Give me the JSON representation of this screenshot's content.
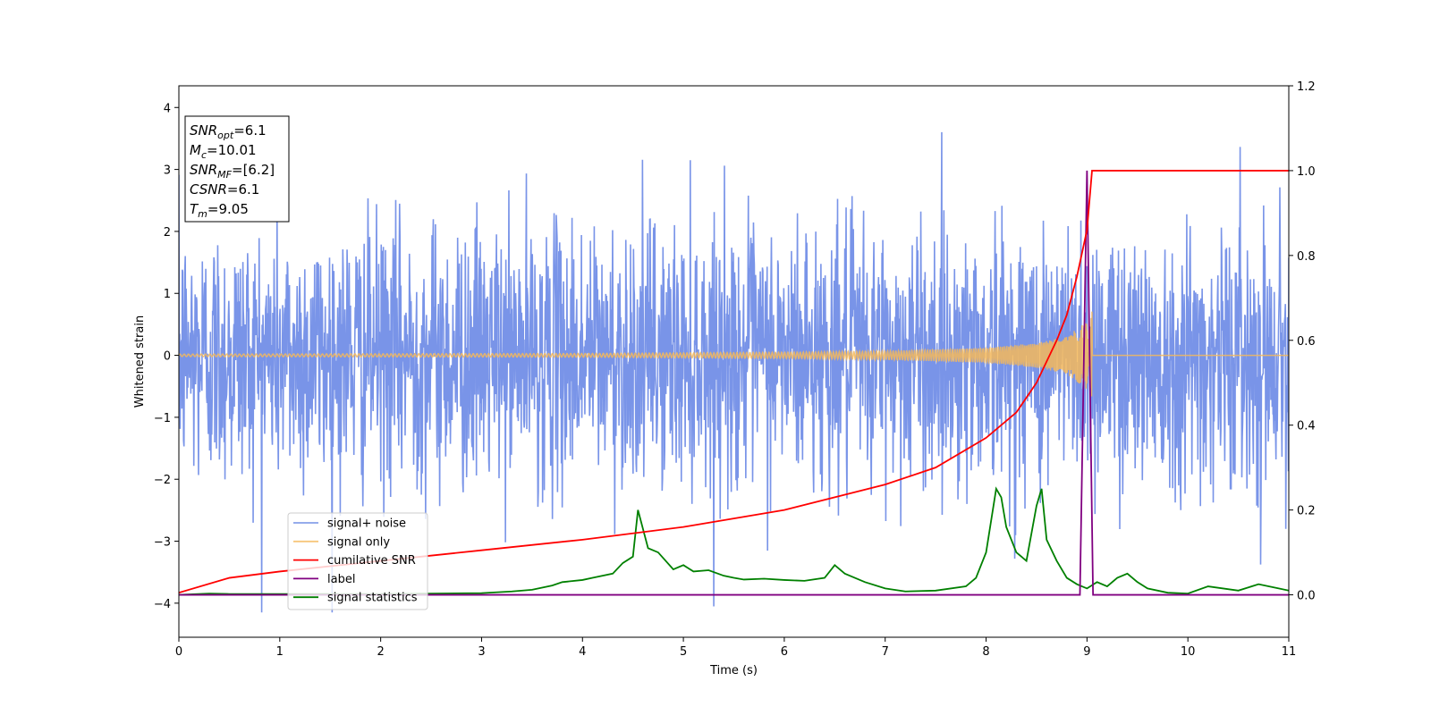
{
  "chart_data": {
    "type": "line",
    "xlabel": "Time (s)",
    "ylabel_left": "Whitened strain",
    "ylabel_right": "",
    "xlim": [
      0,
      11
    ],
    "ylim_left": [
      -4.55,
      4.35
    ],
    "ylim_right": [
      -0.1,
      1.2
    ],
    "x_ticks": [
      0,
      1,
      2,
      3,
      4,
      5,
      6,
      7,
      8,
      9,
      10,
      11
    ],
    "y_ticks_left": [
      -4,
      -3,
      -2,
      -1,
      0,
      1,
      2,
      3,
      4
    ],
    "y_ticks_right": [
      0.0,
      0.2,
      0.4,
      0.6,
      0.8,
      1.0,
      1.2
    ],
    "grid": false,
    "legend_position": "lower-left",
    "info_box": {
      "position": "top-left",
      "lines": [
        {
          "main": "SNR",
          "sub": "opt",
          "value": "=6.1"
        },
        {
          "main": "M",
          "sub": "c",
          "value": "=10.01"
        },
        {
          "main": "SNR",
          "sub": "MF",
          "value": "=[6.2]"
        },
        {
          "main": "CSNR",
          "sub": "",
          "value": "=6.1"
        },
        {
          "main": "T",
          "sub": "m",
          "value": "=9.05"
        }
      ]
    },
    "series": [
      {
        "name": "signal+ noise",
        "axis": "left",
        "color": "#6a88e5",
        "description": "whitened noise, std about 1, extremes about -4.1 to 3.8"
      },
      {
        "name": "signal only",
        "axis": "left",
        "color": "#f5b85a",
        "envelope_t": [
          0,
          4,
          6,
          7,
          8,
          8.5,
          8.8,
          9.0,
          9.05
        ],
        "envelope_amp": [
          0.02,
          0.03,
          0.05,
          0.07,
          0.12,
          0.2,
          0.3,
          0.55,
          0.72
        ],
        "merger_time": 9.05
      },
      {
        "name": "cumilative SNR",
        "axis": "right",
        "color": "#ff0000",
        "x": [
          0,
          0.5,
          1,
          2,
          3,
          4,
          5,
          6,
          7,
          7.5,
          8,
          8.3,
          8.5,
          8.7,
          8.8,
          8.9,
          9.0,
          9.05,
          11
        ],
        "y": [
          0.005,
          0.04,
          0.055,
          0.08,
          0.105,
          0.13,
          0.16,
          0.2,
          0.26,
          0.3,
          0.37,
          0.43,
          0.5,
          0.6,
          0.66,
          0.75,
          0.86,
          1.0,
          1.0
        ]
      },
      {
        "name": "label",
        "axis": "right",
        "color": "#800080",
        "x": [
          0,
          8.93,
          9.0,
          9.06,
          11
        ],
        "y": [
          0.0,
          0.0,
          1.0,
          0.0,
          0.0
        ]
      },
      {
        "name": "signal statistics",
        "axis": "right",
        "color": "#008000",
        "x": [
          0,
          0.3,
          0.5,
          1,
          1.5,
          2,
          2.5,
          3,
          3.3,
          3.5,
          3.7,
          3.8,
          4,
          4.1,
          4.3,
          4.4,
          4.5,
          4.55,
          4.65,
          4.75,
          4.9,
          5.0,
          5.1,
          5.25,
          5.4,
          5.5,
          5.6,
          5.8,
          6.0,
          6.2,
          6.4,
          6.5,
          6.6,
          6.8,
          7.0,
          7.2,
          7.5,
          7.8,
          7.9,
          8.0,
          8.1,
          8.15,
          8.2,
          8.3,
          8.4,
          8.5,
          8.55,
          8.6,
          8.7,
          8.8,
          8.9,
          9.0,
          9.1,
          9.2,
          9.3,
          9.4,
          9.5,
          9.6,
          9.8,
          10.0,
          10.2,
          10.5,
          10.7,
          10.9,
          11
        ],
        "y": [
          0.0,
          0.003,
          0.002,
          0.002,
          0.002,
          0.002,
          0.003,
          0.004,
          0.008,
          0.012,
          0.022,
          0.03,
          0.035,
          0.04,
          0.05,
          0.075,
          0.09,
          0.2,
          0.11,
          0.1,
          0.06,
          0.07,
          0.055,
          0.058,
          0.045,
          0.04,
          0.036,
          0.038,
          0.035,
          0.033,
          0.04,
          0.07,
          0.05,
          0.03,
          0.015,
          0.008,
          0.01,
          0.02,
          0.04,
          0.1,
          0.25,
          0.23,
          0.16,
          0.1,
          0.08,
          0.21,
          0.25,
          0.13,
          0.08,
          0.04,
          0.025,
          0.015,
          0.03,
          0.02,
          0.04,
          0.05,
          0.03,
          0.015,
          0.005,
          0.003,
          0.02,
          0.01,
          0.025,
          0.015,
          0.01
        ]
      }
    ]
  }
}
